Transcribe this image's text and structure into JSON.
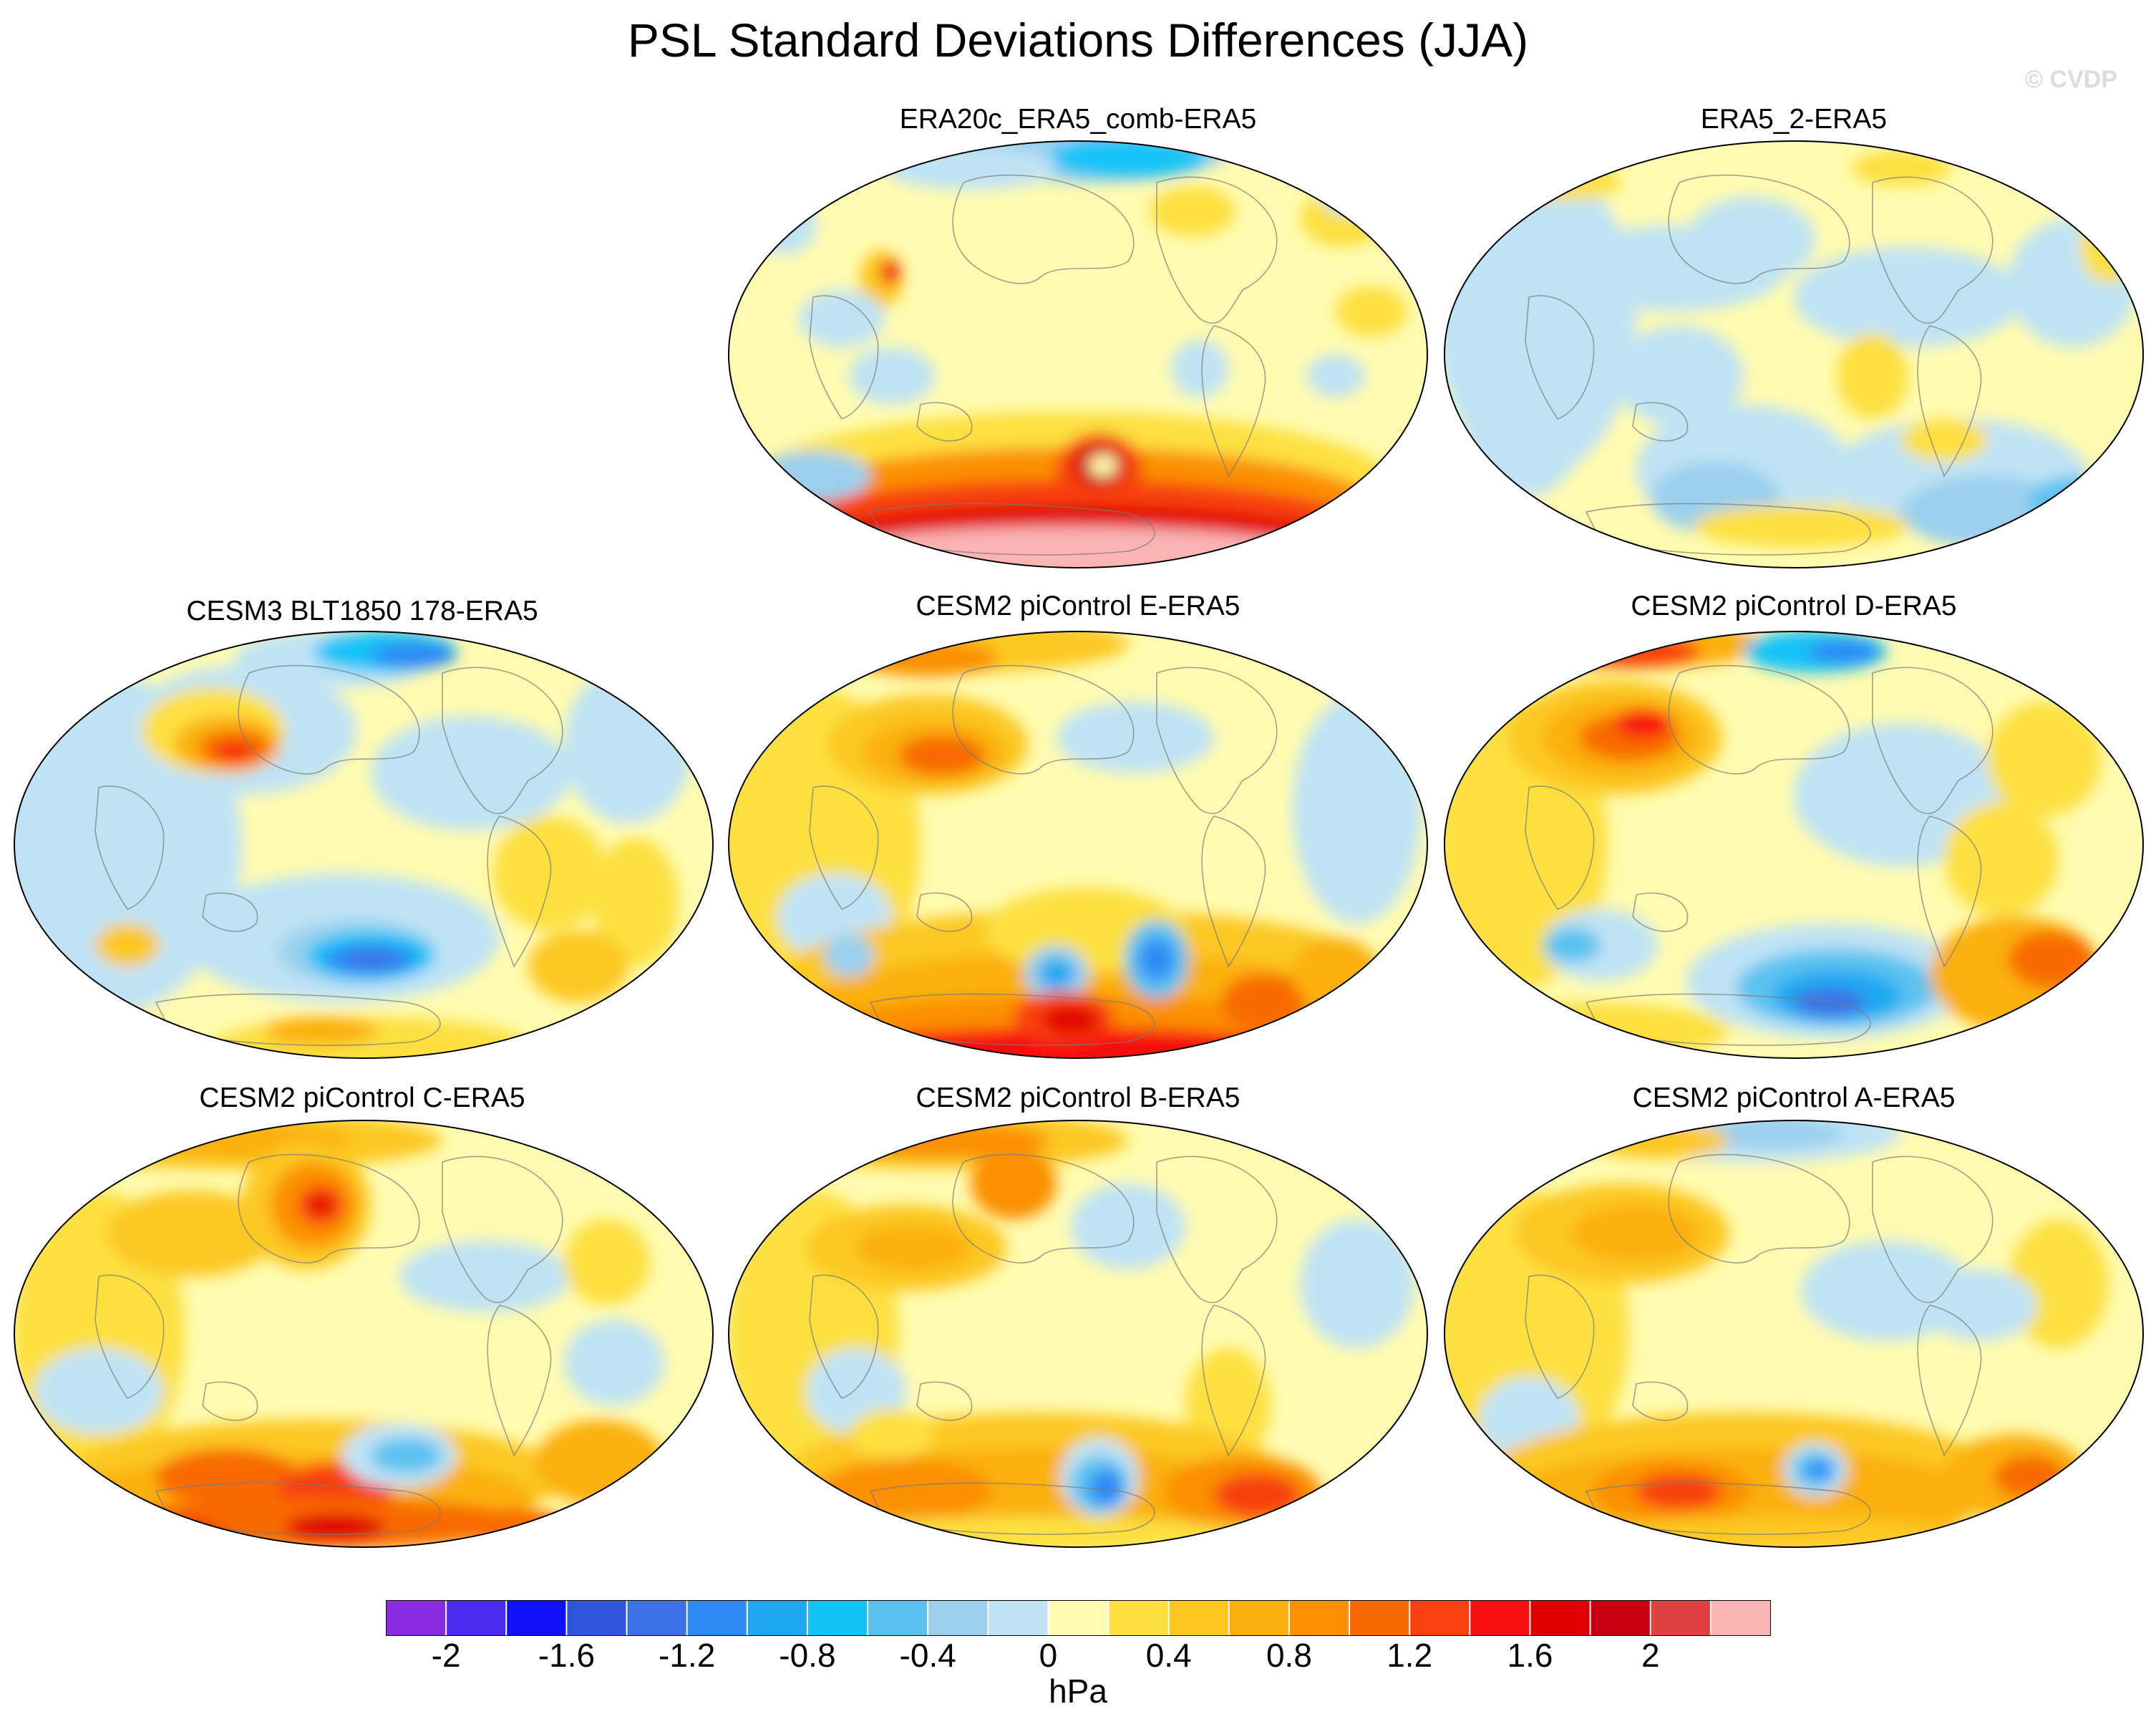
{
  "figure": {
    "title": "PSL Standard Deviations Differences (JJA)",
    "copyright": "© CVDP",
    "units": "hPa"
  },
  "panels": [
    {
      "id": "p1",
      "title": "ERA20c_ERA5_comb-ERA5"
    },
    {
      "id": "p2",
      "title": "ERA5_2-ERA5"
    },
    {
      "id": "p3",
      "title": "CESM3 BLT1850 178-ERA5"
    },
    {
      "id": "p4",
      "title": "CESM2 piControl E-ERA5"
    },
    {
      "id": "p5",
      "title": "CESM2 piControl D-ERA5"
    },
    {
      "id": "p6",
      "title": "CESM2 piControl C-ERA5"
    },
    {
      "id": "p7",
      "title": "CESM2 piControl B-ERA5"
    },
    {
      "id": "p8",
      "title": "CESM2 piControl A-ERA5"
    }
  ],
  "colorbar": {
    "colors": [
      "#8a2be2",
      "#4a2bf0",
      "#0f10f5",
      "#2f55dc",
      "#3d72e6",
      "#2f8af5",
      "#1fa8f2",
      "#12c3f7",
      "#5bc2f0",
      "#9ad0ee",
      "#bfe3f5",
      "#fffbb0",
      "#fde040",
      "#fcc820",
      "#fbb010",
      "#fb9000",
      "#f86a00",
      "#f84010",
      "#f81010",
      "#e00000",
      "#c80010",
      "#e04040",
      "#fbb4b4"
    ],
    "tick_labels": [
      "-2",
      "-1.6",
      "-1.2",
      "-0.8",
      "-0.4",
      "0",
      "0.4",
      "0.8",
      "1.2",
      "1.6",
      "2"
    ]
  }
}
